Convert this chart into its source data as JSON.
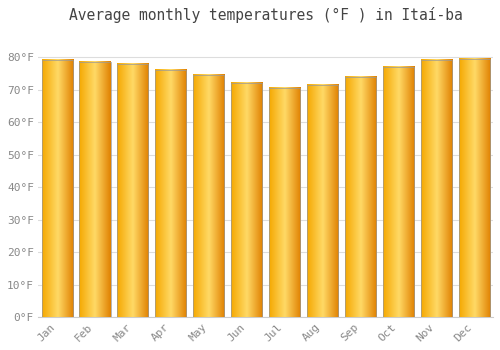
{
  "title": "Average monthly temperatures (°F ) in Itaí-ba",
  "months": [
    "Jan",
    "Feb",
    "Mar",
    "Apr",
    "May",
    "Jun",
    "Jul",
    "Aug",
    "Sep",
    "Oct",
    "Nov",
    "Dec"
  ],
  "values": [
    79,
    78.5,
    78,
    76,
    74.5,
    72,
    70.5,
    71.5,
    74,
    77,
    79,
    79.5
  ],
  "bar_color_left": "#F5A800",
  "bar_color_center": "#FFD966",
  "bar_color_right": "#E08000",
  "bar_edge_color": "#888888",
  "background_color": "#ffffff",
  "plot_bg_color": "#ffffff",
  "grid_color": "#dddddd",
  "text_color": "#888888",
  "title_color": "#444444",
  "ylim": [
    0,
    88
  ],
  "ytick_step": 10,
  "title_fontsize": 10.5,
  "bar_width": 0.82
}
